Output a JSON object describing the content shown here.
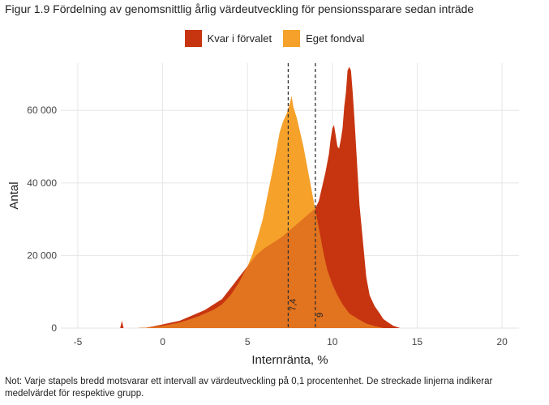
{
  "title": "Figur 1.9 Fördelning av genomsnittlig årlig värdeutveckling för pensionssparare sedan inträde",
  "note": "Not: Varje stapels bredd motsvarar ett intervall av värdeutveckling på 0,1 procentenhet. De streckade linjerna indikerar medelvärdet för respektive grupp.",
  "legend": [
    {
      "label": "Kvar i förvalet",
      "color": "#c73510"
    },
    {
      "label": "Eget fondval",
      "color": "#f5a12a"
    }
  ],
  "colors": {
    "overlap": "#e2731f",
    "grid": "#e6e6e6",
    "dash": "#333333"
  },
  "chart_data": {
    "type": "area",
    "xlabel": "Internränta, %",
    "ylabel": "Antal",
    "xlim": [
      -6,
      21
    ],
    "ylim": [
      0,
      73000
    ],
    "xticks": [
      -5,
      0,
      5,
      10,
      15,
      20
    ],
    "xtick_labels": [
      "-5",
      "0",
      "5",
      "10",
      "15",
      "20"
    ],
    "yticks": [
      0,
      20000,
      40000,
      60000
    ],
    "ytick_labels": [
      "0",
      "20 000",
      "40 000",
      "60 000"
    ],
    "grid": true,
    "legend_position": "top",
    "series": [
      {
        "name": "Kvar i förvalet",
        "color": "#c73510",
        "x": [
          -3,
          -2.5,
          -2.4,
          -2.3,
          -2,
          -1.5,
          -1,
          -0.5,
          0,
          0.5,
          1,
          1.5,
          2,
          2.5,
          3,
          3.5,
          4,
          4.5,
          5,
          5.5,
          6,
          6.5,
          7,
          7.5,
          8,
          8.5,
          9,
          9.2,
          9.4,
          9.6,
          9.8,
          9.9,
          10,
          10.1,
          10.2,
          10.3,
          10.4,
          10.5,
          10.6,
          10.7,
          10.8,
          10.9,
          11,
          11.1,
          11.2,
          11.3,
          11.4,
          11.5,
          11.6,
          11.8,
          12,
          12.2,
          12.5,
          12.8,
          13,
          13.3,
          13.6,
          14
        ],
        "y": [
          0,
          0,
          2000,
          0,
          0,
          0,
          100,
          500,
          1000,
          1500,
          2000,
          3000,
          4000,
          5000,
          6500,
          8000,
          11000,
          14000,
          17000,
          20000,
          22000,
          23500,
          25000,
          27000,
          29000,
          31000,
          33000,
          35000,
          39000,
          43000,
          48000,
          52000,
          55000,
          56000,
          53000,
          50000,
          49500,
          52000,
          55000,
          61000,
          65000,
          71000,
          72000,
          71000,
          65000,
          58000,
          50000,
          42000,
          34000,
          24000,
          14000,
          9000,
          6000,
          4000,
          2500,
          1500,
          600,
          0
        ]
      },
      {
        "name": "Eget fondval",
        "color": "#f5a12a",
        "x": [
          -3,
          -2.5,
          -2,
          -1.5,
          -1,
          -0.5,
          0,
          0.5,
          1,
          1.5,
          2,
          2.5,
          3,
          3.5,
          4,
          4.5,
          5,
          5.3,
          5.6,
          5.9,
          6.2,
          6.5,
          6.7,
          6.9,
          7.1,
          7.3,
          7.5,
          7.6,
          7.7,
          7.9,
          8.1,
          8.3,
          8.5,
          8.7,
          8.9,
          9.1,
          9.3,
          9.5,
          9.7,
          10,
          10.3,
          10.6,
          11,
          11.5,
          12,
          12.5,
          13
        ],
        "y": [
          0,
          0,
          0,
          0,
          100,
          300,
          600,
          1000,
          1500,
          2200,
          3000,
          4000,
          5000,
          6500,
          9000,
          12500,
          17000,
          20500,
          25000,
          30000,
          37000,
          44000,
          49000,
          54000,
          57000,
          59000,
          62000,
          64000,
          61000,
          58000,
          54000,
          50000,
          45000,
          40000,
          35000,
          30000,
          25000,
          20000,
          16000,
          12000,
          9000,
          6500,
          4000,
          2500,
          1200,
          500,
          0
        ]
      }
    ],
    "mean_lines": [
      {
        "x": 7.4,
        "label": "7,4"
      },
      {
        "x": 9,
        "label": "9"
      }
    ]
  }
}
